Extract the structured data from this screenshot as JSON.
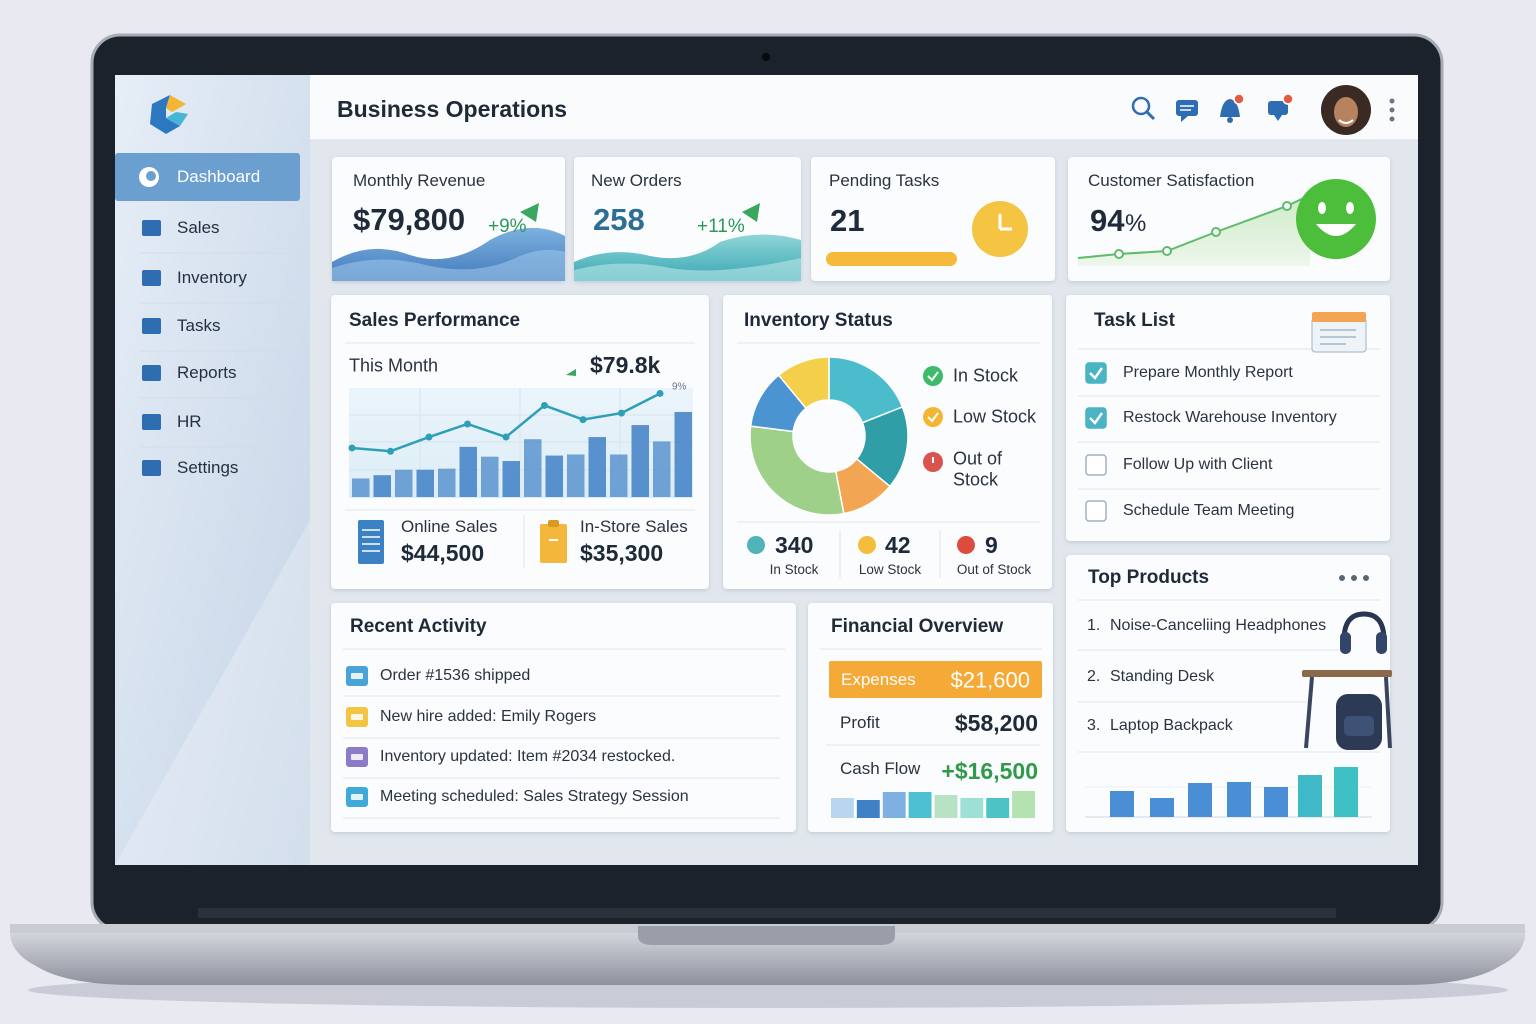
{
  "header": {
    "title": "Business Operations"
  },
  "sidebar": {
    "items": [
      "Dashboard",
      "Sales",
      "Inventory",
      "Tasks",
      "Reports",
      "HR",
      "Settings"
    ],
    "active": 0
  },
  "kpis": [
    {
      "label": "Monthly Revenue",
      "value": "$79,800",
      "change": "+9%"
    },
    {
      "label": "New Orders",
      "value": "258",
      "change": "+11%"
    },
    {
      "label": "Pending Tasks",
      "value": "21"
    },
    {
      "label": "Customer Satisfaction",
      "value": "94",
      "unit": "%"
    }
  ],
  "sales_performance": {
    "title": "Sales Performance",
    "period": "This Month",
    "total": "$79.8k",
    "trend": "9%",
    "ylim": [
      0,
      100
    ],
    "bar_color": "#3f80c6",
    "line_color": "#2f9fb8",
    "bars": [
      17,
      20,
      25,
      25,
      26,
      46,
      37,
      33,
      53,
      38,
      39,
      55,
      39,
      66,
      51,
      78
    ],
    "line": [
      45,
      42,
      55,
      67,
      55,
      84,
      71,
      77,
      95
    ],
    "online": {
      "label": "Online Sales",
      "value": "$44,500"
    },
    "in_store": {
      "label": "In-Store Sales",
      "value": "$35,300"
    }
  },
  "inventory_status": {
    "title": "Inventory Status",
    "segments": [
      {
        "color": "#4bbccc",
        "value": 19
      },
      {
        "color": "#2f9ea6",
        "value": 17
      },
      {
        "color": "#f2a654",
        "value": 11
      },
      {
        "color": "#9fd08a",
        "value": 30
      },
      {
        "color": "#4a94d2",
        "value": 12
      },
      {
        "color": "#f4d04a",
        "value": 11
      }
    ],
    "legend": [
      {
        "label": "In Stock",
        "color": "#3dbb6a"
      },
      {
        "label": "Low Stock",
        "color": "#f2b632"
      },
      {
        "label": "Out of Stock",
        "color": "#d9534f"
      }
    ],
    "counts": [
      {
        "value": "340",
        "label": "In Stock",
        "color": "#4fb3b8"
      },
      {
        "value": "42",
        "label": "Low Stock",
        "color": "#f4bd3c"
      },
      {
        "value": "9",
        "label": "Out of Stock",
        "color": "#dd4b3e"
      }
    ]
  },
  "task_list": {
    "title": "Task List",
    "tasks": [
      {
        "label": "Prepare Monthly Report",
        "done": true
      },
      {
        "label": "Restock Warehouse Inventory",
        "done": true
      },
      {
        "label": "Follow Up with Client",
        "done": false
      },
      {
        "label": "Schedule Team Meeting",
        "done": false
      }
    ]
  },
  "top_products": {
    "title": "Top Products",
    "items": [
      {
        "rank": "1.",
        "name": "Noise-Canceliing Headphones"
      },
      {
        "rank": "2.",
        "name": "Standing Desk"
      },
      {
        "rank": "3.",
        "name": "Laptop Backpack"
      }
    ],
    "ylim": [
      0,
      60
    ],
    "bars": [
      26,
      19,
      34,
      35,
      30,
      42,
      50
    ],
    "colors": [
      "#4a8fd6",
      "#4a8fd6",
      "#4a8fd6",
      "#4a8fd6",
      "#4a8fd6",
      "#3fb8c8",
      "#3fc0c4"
    ]
  },
  "recent_activity": {
    "title": "Recent Activity",
    "items": [
      {
        "text": "Order #1536 shipped",
        "color": "#4aa3d6"
      },
      {
        "text": "New hire added: Emily Rogers",
        "color": "#f4c542"
      },
      {
        "text": "Inventory updated: Item #2034 restocked.",
        "color": "#8a7cc6"
      },
      {
        "text": "Meeting scheduled: Sales Strategy Session",
        "color": "#3fa9d8"
      }
    ]
  },
  "financial_overview": {
    "title": "Financial Overview",
    "rows": [
      {
        "label": "Expenses",
        "value": "$21,600"
      },
      {
        "label": "Profit",
        "value": "$58,200"
      },
      {
        "label": "Cash Flow",
        "value": "+$16,500"
      }
    ],
    "ylim": [
      0,
      30
    ],
    "bars": [
      20,
      18,
      26,
      26,
      23,
      20,
      20,
      27
    ],
    "colors": [
      "#b9d6ef",
      "#3f80c6",
      "#7fb0e2",
      "#4cc0d0",
      "#b8e2c4",
      "#9fe0d6",
      "#4ec3c6",
      "#b4e2b0"
    ]
  }
}
